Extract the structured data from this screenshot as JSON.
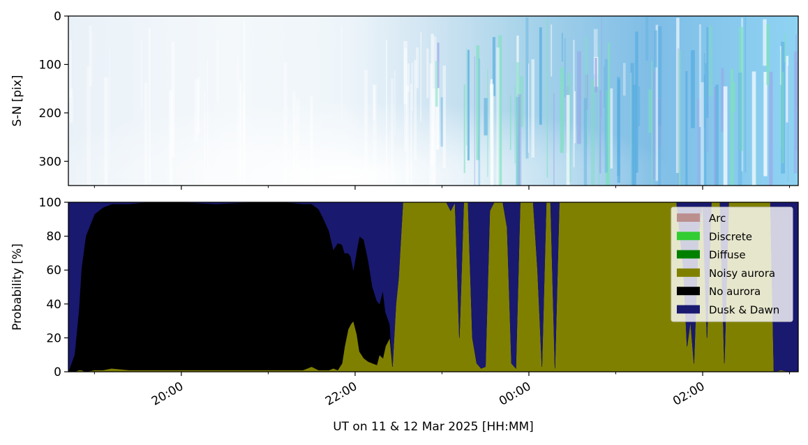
{
  "chart_data": [
    {
      "type": "heatmap",
      "ylabel": "S-N [pix]",
      "y_ticks": [
        "0",
        "100",
        "200",
        "300"
      ],
      "y_tick_values": [
        0,
        100,
        200,
        300
      ],
      "ylim": [
        350,
        0
      ],
      "xlim_hours": [
        18.7,
        27.1
      ],
      "description": "keogram"
    },
    {
      "type": "area",
      "stacked": true,
      "xlabel": "UT on 11 & 12 Mar 2025 [HH:MM]",
      "ylabel": "Probability [%]",
      "ylim": [
        0,
        100
      ],
      "y_ticks": [
        "0",
        "20",
        "40",
        "60",
        "80",
        "100"
      ],
      "y_tick_values": [
        0,
        20,
        40,
        60,
        80,
        100
      ],
      "x_ticks": [
        "20:00",
        "22:00",
        "00:00",
        "02:00"
      ],
      "x_tick_hours": [
        20,
        22,
        24,
        26
      ],
      "x_minor_tick_hours": [
        19,
        21,
        23,
        25,
        27
      ],
      "xlim_hours": [
        18.7,
        27.1
      ],
      "legend_position": "top-right",
      "x_hours": [
        18.7,
        18.77,
        18.82,
        18.85,
        18.9,
        19.0,
        19.1,
        19.2,
        19.4,
        19.6,
        20.0,
        20.4,
        20.8,
        21.2,
        21.4,
        21.5,
        21.58,
        21.63,
        21.7,
        21.75,
        21.8,
        21.85,
        21.88,
        21.92,
        21.95,
        21.98,
        22.02,
        22.05,
        22.1,
        22.15,
        22.2,
        22.25,
        22.28,
        22.32,
        22.35,
        22.4,
        22.43,
        22.47,
        22.5,
        22.55,
        22.6,
        22.7,
        22.8,
        22.9,
        22.98,
        23.05,
        23.1,
        23.15,
        23.2,
        23.25,
        23.3,
        23.35,
        23.4,
        23.45,
        23.5,
        23.55,
        23.6,
        23.65,
        23.7,
        23.75,
        23.8,
        23.85,
        23.9,
        23.95,
        24.0,
        24.05,
        24.1,
        24.15,
        24.2,
        24.25,
        24.3,
        24.35,
        24.4,
        24.45,
        24.5,
        24.55,
        24.6,
        24.65,
        24.7,
        24.75,
        24.8,
        24.85,
        24.9,
        24.95,
        25.0,
        25.05,
        25.2,
        25.4,
        25.6,
        25.7,
        25.78,
        25.82,
        25.86,
        25.9,
        25.95,
        26.0,
        26.05,
        26.1,
        26.15,
        26.2,
        26.25,
        26.3,
        26.4,
        26.5,
        26.6,
        26.7,
        26.74,
        26.78,
        26.82,
        26.9,
        27.0,
        27.1
      ],
      "series": [
        {
          "name": "Arc",
          "color": "#bc8f8f",
          "values": [
            0,
            0,
            0,
            0,
            0,
            0,
            0,
            0,
            0,
            0,
            0,
            0,
            0,
            0,
            0,
            0,
            0,
            0,
            0,
            0,
            0,
            0,
            0,
            0,
            0,
            0,
            0,
            0,
            0,
            0,
            0,
            0,
            0,
            0,
            0,
            0,
            0,
            0,
            0,
            0,
            0,
            0,
            0,
            0,
            0,
            0,
            0,
            0,
            0,
            0,
            0,
            0,
            0,
            0,
            0,
            0,
            0,
            0,
            0,
            0,
            0,
            0,
            0,
            0,
            0,
            0,
            0,
            0,
            0,
            0,
            0,
            0,
            0,
            0,
            0,
            0,
            0,
            0,
            0,
            0,
            0,
            0,
            0,
            0,
            0,
            0,
            0,
            0,
            0,
            0,
            0,
            0,
            0,
            0,
            0,
            0,
            0,
            0,
            0,
            0,
            0,
            0,
            0,
            0,
            0,
            0,
            0,
            0,
            0,
            0,
            0,
            0
          ]
        },
        {
          "name": "Discrete",
          "color": "#32cd32",
          "values": [
            0,
            0,
            0,
            0,
            0,
            0,
            0,
            0,
            0,
            0,
            0,
            0,
            0,
            0,
            0,
            0,
            0,
            0,
            0,
            0,
            0,
            0,
            0,
            0,
            0,
            0,
            0,
            0,
            0,
            0,
            0,
            0,
            0,
            0,
            0,
            0,
            0,
            0,
            0,
            0,
            0,
            0,
            0,
            0,
            0,
            0,
            0,
            0,
            0,
            0,
            0,
            0,
            0,
            0,
            0,
            0,
            0,
            0,
            0,
            0,
            0,
            0,
            0,
            0,
            0,
            0,
            0,
            0,
            0,
            0,
            0,
            0,
            0,
            0,
            0,
            0,
            0,
            0,
            0,
            0,
            0,
            0,
            0,
            0,
            0,
            0,
            0,
            0,
            0,
            0,
            0,
            0,
            0,
            0,
            0,
            0,
            0,
            0,
            0,
            0,
            0,
            0,
            0,
            0,
            0,
            0,
            0,
            0,
            0,
            0,
            0,
            0
          ]
        },
        {
          "name": "Diffuse",
          "color": "#008000",
          "values": [
            0,
            0,
            0,
            0,
            0,
            0,
            0,
            0,
            0,
            0,
            0,
            0,
            0,
            0,
            0,
            0,
            0,
            0,
            0,
            0,
            0,
            0,
            0,
            0,
            0,
            0,
            0,
            0,
            0,
            0,
            0,
            0,
            0,
            0,
            0,
            0,
            0,
            0,
            0,
            0,
            0,
            0,
            0,
            0,
            0,
            0,
            0,
            0,
            0,
            0,
            0,
            0,
            0,
            0,
            0,
            0,
            0,
            0,
            0,
            0,
            0,
            0,
            0,
            0,
            0,
            0,
            0,
            0,
            0,
            0,
            0,
            0,
            0,
            0,
            0,
            0,
            0,
            0,
            0,
            0,
            0,
            0,
            0,
            0,
            0,
            0,
            0,
            0,
            0,
            0,
            0,
            0,
            0,
            0,
            0,
            0,
            0,
            0,
            0,
            0,
            0,
            0,
            0,
            0,
            0,
            0,
            0,
            0,
            0,
            0,
            0,
            0
          ]
        },
        {
          "name": "Noisy aurora",
          "color": "#808000",
          "values": [
            0,
            0,
            1,
            1,
            0,
            1,
            1,
            2,
            1,
            1,
            1,
            1,
            1,
            1,
            1,
            3,
            1,
            1,
            1,
            2,
            1,
            5,
            15,
            25,
            28,
            30,
            22,
            12,
            8,
            6,
            5,
            4,
            10,
            8,
            15,
            20,
            3,
            40,
            55,
            100,
            100,
            100,
            100,
            100,
            100,
            100,
            95,
            100,
            20,
            100,
            100,
            20,
            5,
            2,
            3,
            95,
            100,
            100,
            100,
            85,
            5,
            2,
            100,
            100,
            100,
            100,
            60,
            3,
            100,
            100,
            2,
            100,
            100,
            100,
            100,
            100,
            100,
            100,
            100,
            100,
            100,
            100,
            100,
            100,
            100,
            100,
            100,
            100,
            100,
            100,
            60,
            15,
            30,
            5,
            80,
            100,
            20,
            100,
            100,
            100,
            5,
            100,
            100,
            100,
            100,
            100,
            100,
            100,
            0,
            1,
            0,
            0
          ]
        },
        {
          "name": "No aurora",
          "color": "#000000",
          "values": [
            0,
            10,
            35,
            60,
            80,
            92,
            96,
            97,
            98,
            99,
            99,
            98,
            99,
            99,
            98,
            96,
            95,
            90,
            82,
            70,
            75,
            70,
            55,
            45,
            40,
            30,
            50,
            68,
            70,
            60,
            45,
            38,
            30,
            40,
            20,
            8,
            0,
            0,
            0,
            0,
            0,
            0,
            0,
            0,
            0,
            0,
            0,
            0,
            0,
            0,
            0,
            0,
            0,
            0,
            0,
            0,
            0,
            0,
            0,
            0,
            0,
            0,
            0,
            0,
            0,
            0,
            0,
            0,
            0,
            0,
            0,
            0,
            0,
            0,
            0,
            0,
            0,
            0,
            0,
            0,
            0,
            0,
            0,
            0,
            0,
            0,
            0,
            0,
            0,
            0,
            0,
            0,
            0,
            0,
            0,
            0,
            0,
            0,
            0,
            0,
            0,
            0,
            0,
            0,
            0,
            0,
            0,
            0,
            0,
            0,
            0,
            0
          ]
        },
        {
          "name": "Dusk & Dawn",
          "color": "#191970",
          "values": [
            100,
            90,
            64,
            39,
            20,
            7,
            3,
            1,
            1,
            0,
            0,
            1,
            0,
            0,
            1,
            1,
            4,
            9,
            17,
            28,
            24,
            25,
            30,
            30,
            32,
            40,
            28,
            20,
            22,
            34,
            50,
            58,
            60,
            52,
            65,
            72,
            97,
            60,
            45,
            0,
            0,
            0,
            0,
            0,
            0,
            0,
            5,
            0,
            80,
            0,
            0,
            80,
            95,
            98,
            97,
            5,
            0,
            0,
            0,
            15,
            95,
            98,
            0,
            0,
            0,
            0,
            40,
            97,
            0,
            0,
            98,
            0,
            0,
            0,
            0,
            0,
            0,
            0,
            0,
            0,
            0,
            0,
            0,
            0,
            0,
            0,
            0,
            0,
            0,
            0,
            40,
            85,
            70,
            95,
            20,
            0,
            80,
            0,
            0,
            0,
            95,
            0,
            0,
            0,
            0,
            0,
            0,
            0,
            100,
            99,
            100,
            100
          ]
        }
      ]
    }
  ]
}
